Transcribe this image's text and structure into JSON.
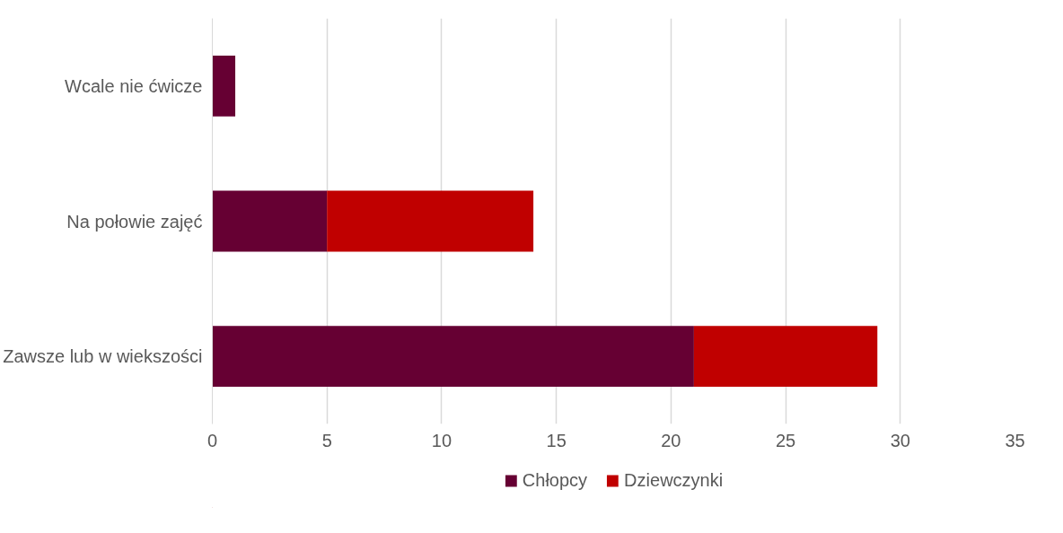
{
  "chart_data": {
    "type": "bar",
    "orientation": "horizontal",
    "stacked": true,
    "categories": [
      "Wcale nie ćwicze",
      "Na połowie zajęć",
      "Zawsze lub w wiekszości"
    ],
    "series": [
      {
        "name": "Chłopcy",
        "color": "#660033",
        "values": [
          1,
          5,
          21
        ]
      },
      {
        "name": "Dziewczynki",
        "color": "#c00000",
        "values": [
          0,
          9,
          8
        ]
      }
    ],
    "xlim": [
      0,
      35
    ],
    "xticks": [
      0,
      5,
      10,
      15,
      20,
      25,
      30,
      35
    ],
    "grid": "x",
    "legend": "bottom"
  }
}
